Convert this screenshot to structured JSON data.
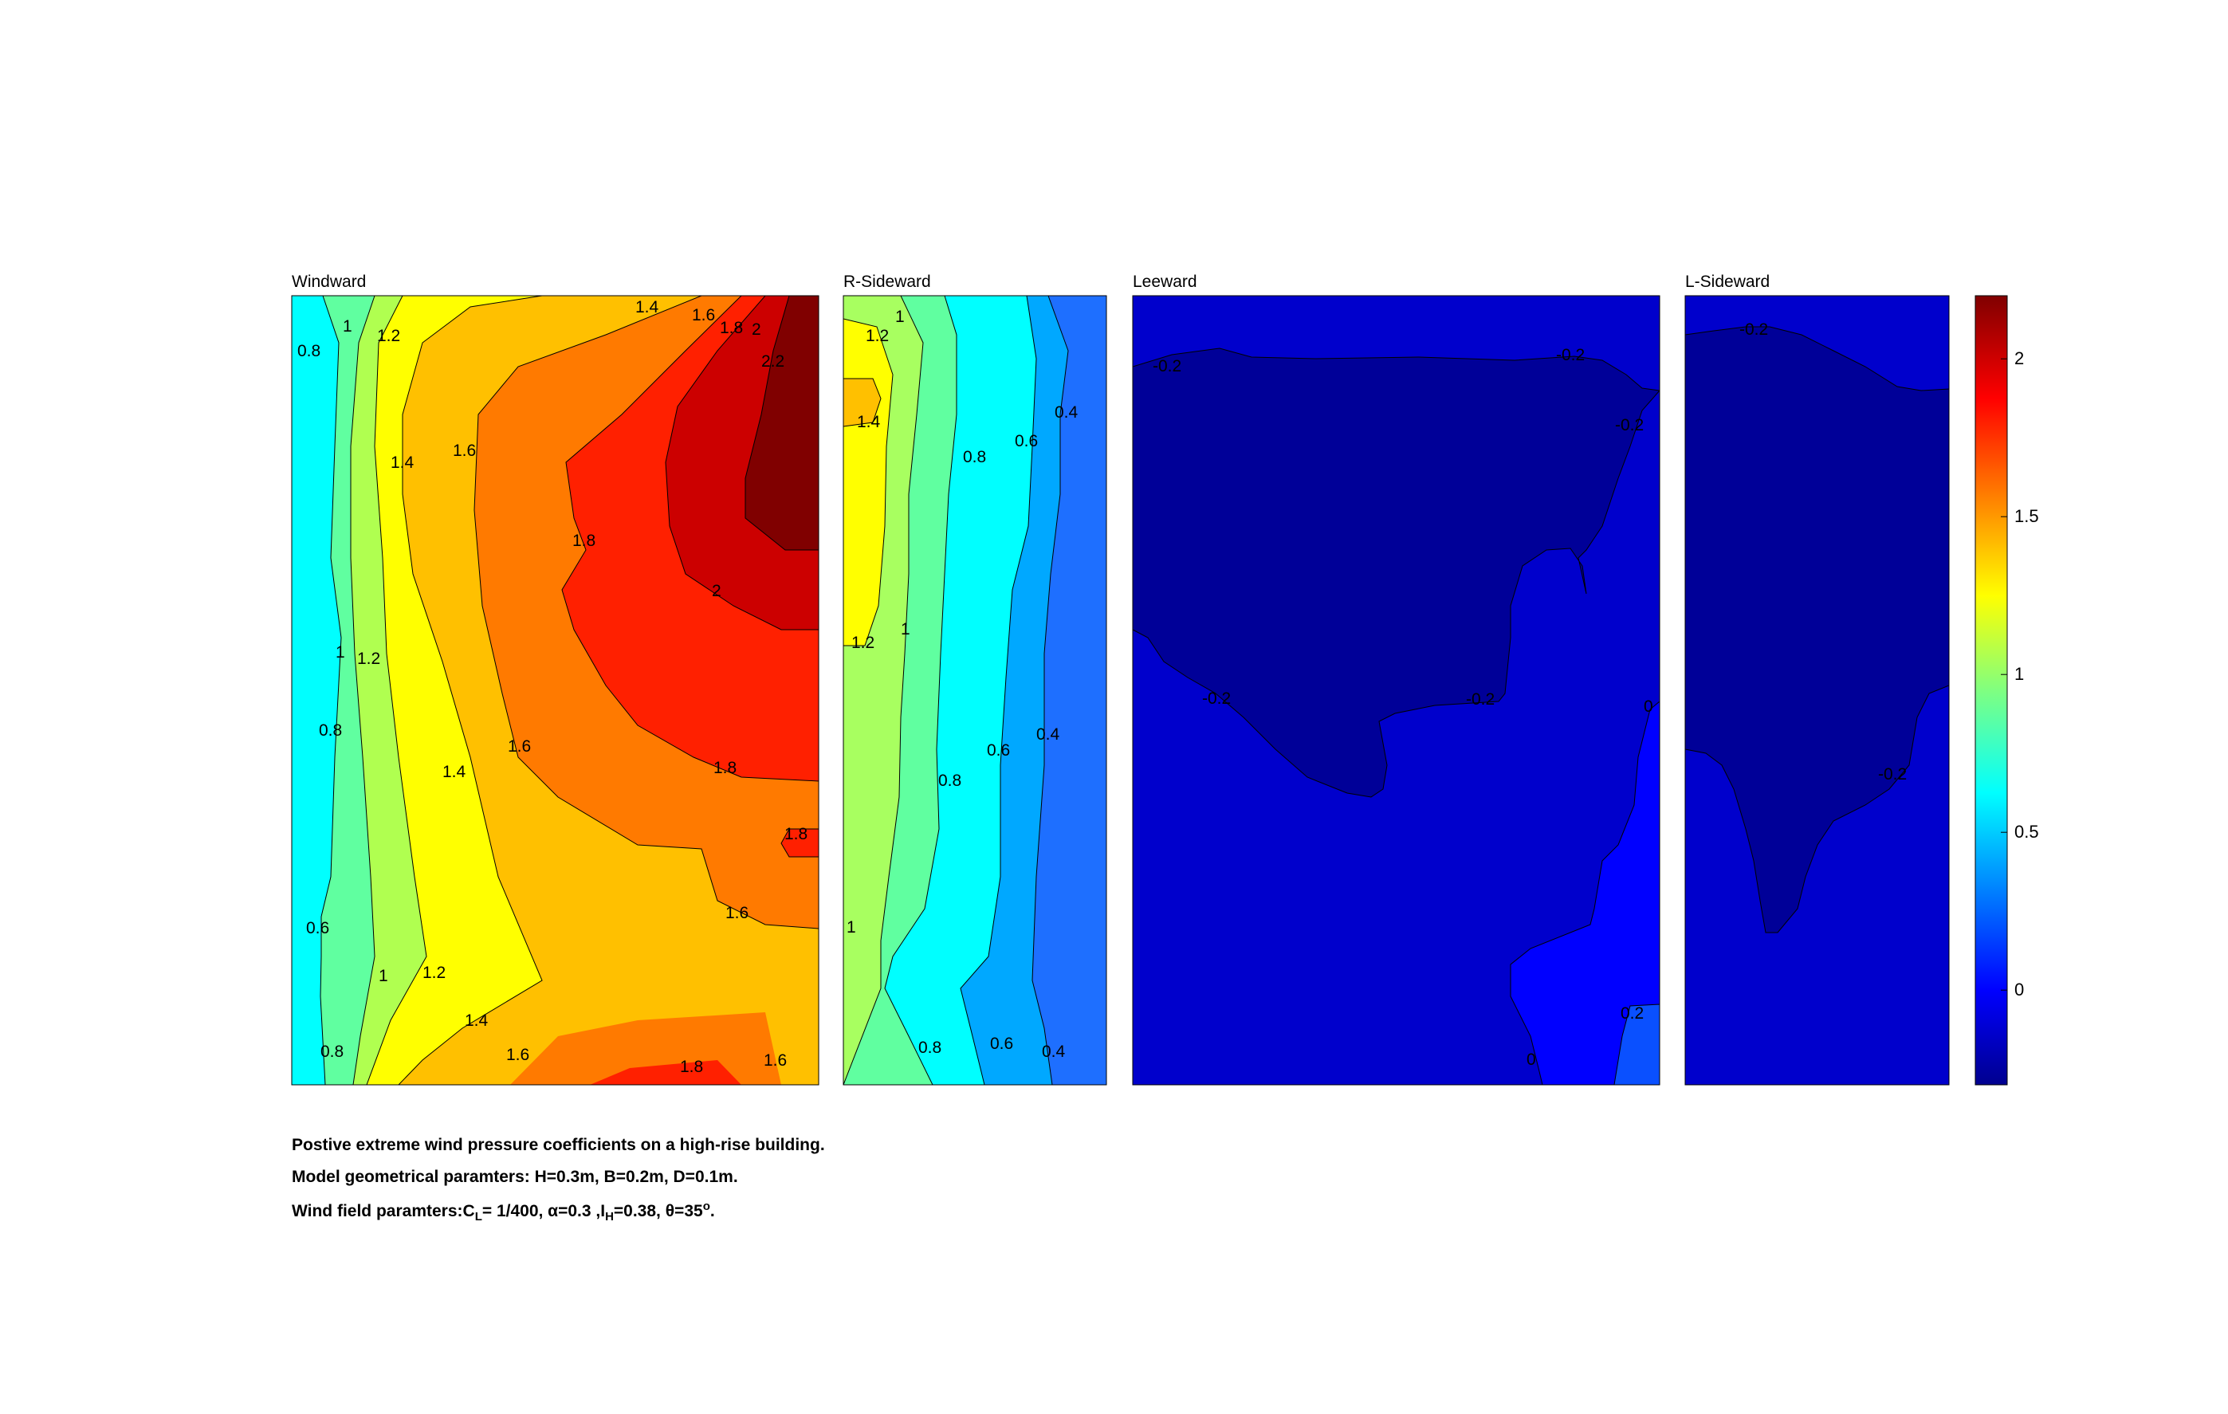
{
  "chart_data": {
    "type": "heatmap",
    "subtype": "filled-contour",
    "colormap": "jet",
    "colorbar": {
      "range": [
        -0.3,
        2.2
      ],
      "ticks": [
        "0",
        "0.5",
        "1",
        "1.5",
        "2"
      ]
    },
    "panels": [
      {
        "title": "Windward",
        "contour_levels": [
          "0.6",
          "0.8",
          "1",
          "1.2",
          "1.4",
          "1.6",
          "1.8",
          "2",
          "2.2"
        ],
        "labels": [
          "0.8",
          "1",
          "1.2",
          "1.4",
          "1.6",
          "1.8",
          "2",
          "2.2",
          "1.4",
          "1.6",
          "1.8",
          "2",
          "1",
          "1.2",
          "0.8",
          "1.6",
          "1.4",
          "1.8",
          "1.8",
          "1.6",
          "0.6",
          "1",
          "1.2",
          "1.4",
          "1.6",
          "1.8",
          "0.8",
          "1.6"
        ]
      },
      {
        "title": "R-Sideward",
        "contour_levels": [
          "0.4",
          "0.6",
          "0.8",
          "1",
          "1.2",
          "1.4"
        ],
        "labels": [
          "1",
          "1.2",
          "1.4",
          "0.8",
          "0.6",
          "0.4",
          "1.2",
          "1",
          "0.6",
          "0.4",
          "0.8",
          "1",
          "0.8",
          "0.6",
          "0.4"
        ]
      },
      {
        "title": "Leeward",
        "contour_levels": [
          "-0.2",
          "0",
          "0.2"
        ],
        "labels": [
          "-0.2",
          "-0.2",
          "-0.2",
          "-0.2",
          "-0.2",
          "0",
          "0.2",
          "0"
        ]
      },
      {
        "title": "L-Sideward",
        "contour_levels": [
          "-0.2"
        ],
        "labels": [
          "-0.2",
          "-0.2"
        ]
      }
    ]
  },
  "caption": {
    "line1": "Postive extreme  wind pressure coefficients on a high-rise building.",
    "line2": "Model geometrical paramters: H=0.3m, B=0.2m, D=0.1m.",
    "line3_prefix": "Wind field paramters:C",
    "line3_sub1": "L",
    "line3_mid1": "= 1/400, α=0.3 ,I",
    "line3_sub2": "H",
    "line3_mid2": "=0.38, θ=35",
    "line3_sup": "o",
    "line3_end": "."
  }
}
